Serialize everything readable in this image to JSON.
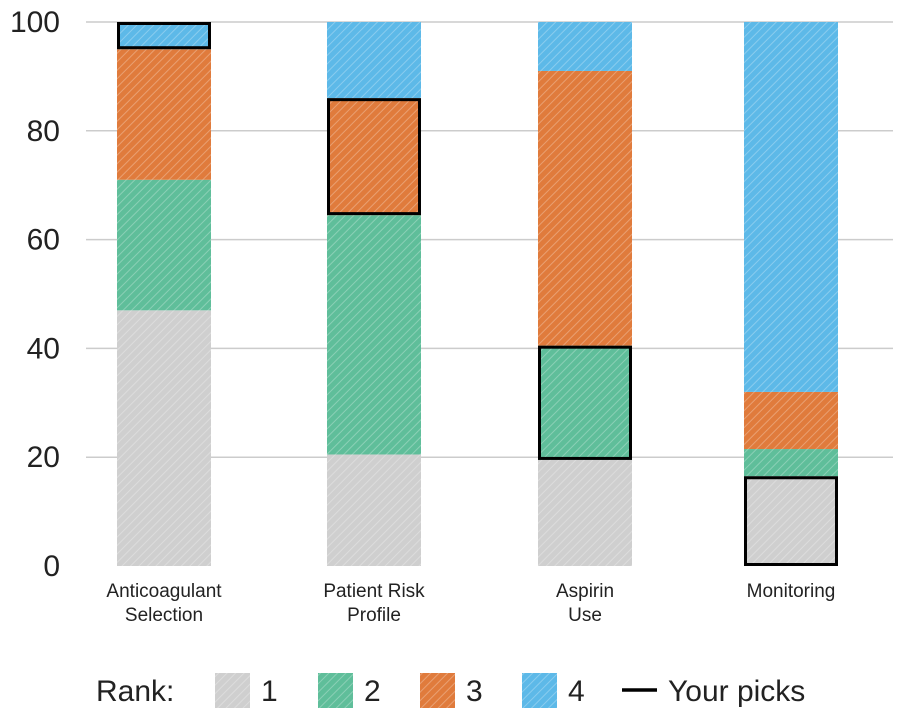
{
  "chart_data": {
    "type": "bar",
    "stacked": true,
    "categories": [
      [
        "Anticoagulant",
        "Selection"
      ],
      [
        "Patient Risk",
        "Profile"
      ],
      [
        "Aspirin",
        "Use"
      ],
      [
        "Monitoring"
      ]
    ],
    "series": [
      {
        "name": "1",
        "color": "#cfcfcf",
        "values": [
          47,
          20.5,
          19.5,
          16.5
        ]
      },
      {
        "name": "2",
        "color": "#5fbe9a",
        "values": [
          24,
          44,
          21,
          5
        ]
      },
      {
        "name": "3",
        "color": "#e07b3c",
        "values": [
          24,
          21.5,
          50.5,
          10.5
        ]
      },
      {
        "name": "4",
        "color": "#5db9e8",
        "values": [
          5,
          14,
          9,
          68
        ]
      }
    ],
    "yticks": [
      0,
      20,
      40,
      60,
      80,
      100
    ],
    "ylim": [
      0,
      100
    ],
    "grid": true,
    "legend": {
      "label": "Rank:",
      "position": "bottom",
      "picks_label": "Your picks"
    },
    "highlights": [
      {
        "category": 0,
        "series": 3
      },
      {
        "category": 1,
        "series": 2
      },
      {
        "category": 2,
        "series": 1
      },
      {
        "category": 3,
        "series": 0
      }
    ]
  }
}
